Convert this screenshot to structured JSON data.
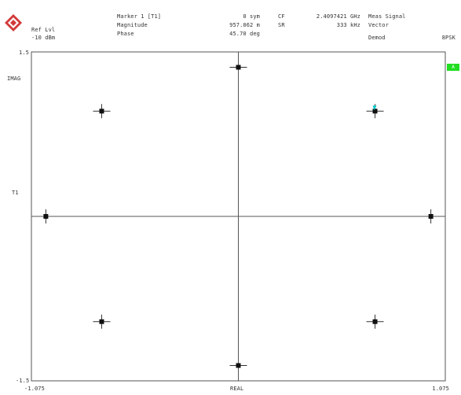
{
  "header": {
    "ref_lvl_label": "Ref Lvl",
    "ref_lvl_value": "-10 dBm",
    "marker_label": "Marker 1 [T1]",
    "magnitude_label": "Magnitude",
    "phase_label": "Phase",
    "marker_value": "0 sym",
    "magnitude_value": "957.062 m",
    "phase_value": "45.70 deg",
    "cf_label": "CF",
    "cf_value": "2.4097421 GHz",
    "sr_label": "SR",
    "sr_value": "333 kHz",
    "meas_signal": "Meas Signal",
    "vector": "Vector",
    "demod_label": "Demod",
    "demod_value": "8PSK"
  },
  "side": {
    "imag_label": "IMAG",
    "trace_label": "T1",
    "badge_label": "A"
  },
  "colors": {
    "point": "#111111",
    "marker": "#00cccc",
    "badge": "#22dd22"
  },
  "chart_data": {
    "type": "scatter",
    "xlabel": "REAL",
    "ylabel": "IMAG",
    "xlim": [
      -1.075,
      1.075
    ],
    "ylim": [
      -1.5,
      1.5
    ],
    "x_tick_labels": [
      "-1.075",
      "1.075"
    ],
    "y_tick_labels": [
      "1.5",
      "-1.5"
    ],
    "points": [
      {
        "name": "0deg",
        "x": 1.0,
        "y": 0.0
      },
      {
        "name": "45deg",
        "x": 0.71,
        "y": 0.96
      },
      {
        "name": "90deg",
        "x": 0.0,
        "y": 1.36
      },
      {
        "name": "135deg",
        "x": -0.71,
        "y": 0.96
      },
      {
        "name": "180deg",
        "x": -1.0,
        "y": 0.0
      },
      {
        "name": "225deg",
        "x": -0.71,
        "y": -0.96
      },
      {
        "name": "270deg",
        "x": 0.0,
        "y": -1.36
      },
      {
        "name": "315deg",
        "x": 0.71,
        "y": -0.96
      }
    ],
    "marker": {
      "x": 0.71,
      "y": 0.96
    }
  }
}
